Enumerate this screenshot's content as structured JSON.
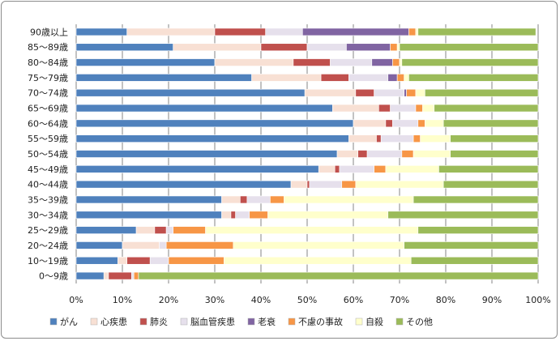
{
  "chart_data": {
    "type": "bar",
    "orientation": "horizontal",
    "stacked": "percent",
    "title": "",
    "xlabel": "",
    "ylabel": "",
    "xlim": [
      0,
      100
    ],
    "x_ticks": [
      "0%",
      "10%",
      "20%",
      "30%",
      "40%",
      "50%",
      "60%",
      "70%",
      "80%",
      "90%",
      "100%"
    ],
    "grid": "vertical",
    "legend_position": "bottom",
    "categories": [
      "90歳以上",
      "85～89歳",
      "80～84歳",
      "75～79歳",
      "70～74歳",
      "65～69歳",
      "60～64歳",
      "55～59歳",
      "50～54歳",
      "45～49歳",
      "40～44歳",
      "35～39歳",
      "30～34歳",
      "25～29歳",
      "20～24歳",
      "10～19歳",
      "0～9歳"
    ],
    "series": [
      {
        "name": "がん",
        "color": "#4f81bd",
        "values": [
          11,
          21,
          30,
          38,
          49.5,
          55.5,
          60,
          59,
          56.5,
          52.5,
          46.5,
          31.5,
          31.5,
          13,
          10,
          9,
          6
        ]
      },
      {
        "name": "心疾患",
        "color": "#f8e0d4",
        "values": [
          19,
          19,
          17,
          15,
          11,
          10,
          7,
          6,
          4.5,
          3.5,
          3.5,
          4,
          2,
          4,
          8,
          2,
          1
        ]
      },
      {
        "name": "肺炎",
        "color": "#c0504d",
        "values": [
          11,
          10,
          8,
          6,
          4,
          2.5,
          1.5,
          1,
          2,
          1,
          0.5,
          1.5,
          1,
          2.5,
          0,
          5,
          5
        ]
      },
      {
        "name": "脳血管疾患",
        "color": "#e6e0ec",
        "values": [
          8,
          8.5,
          9,
          8.5,
          6.5,
          5.5,
          5.5,
          7,
          7.5,
          7.5,
          7,
          5,
          3,
          1.5,
          1.5,
          4,
          0.5
        ]
      },
      {
        "name": "老衰",
        "color": "#8064a2",
        "values": [
          23,
          9.5,
          4.5,
          2,
          0.5,
          0,
          0,
          0,
          0,
          0,
          0,
          0,
          0,
          0,
          0,
          0,
          0
        ]
      },
      {
        "name": "不慮の事故",
        "color": "#f79646",
        "values": [
          1.5,
          1.5,
          1.5,
          1.5,
          2,
          1.5,
          1.5,
          1.5,
          2.5,
          2.5,
          3,
          3,
          4,
          7,
          14.5,
          12,
          1
        ]
      },
      {
        "name": "自殺",
        "color": "#ffffcc",
        "values": [
          0.5,
          0.5,
          0.5,
          1,
          2,
          2.5,
          4,
          6.5,
          8,
          11.5,
          19,
          28,
          26,
          46,
          37,
          40.5,
          0
        ]
      },
      {
        "name": "その他",
        "color": "#9bbb59",
        "values": [
          25.5,
          30,
          29.5,
          28,
          24.5,
          22.5,
          20.5,
          19,
          19,
          21.5,
          20.5,
          27,
          32.5,
          26,
          29,
          27.5,
          86.5
        ]
      }
    ]
  }
}
